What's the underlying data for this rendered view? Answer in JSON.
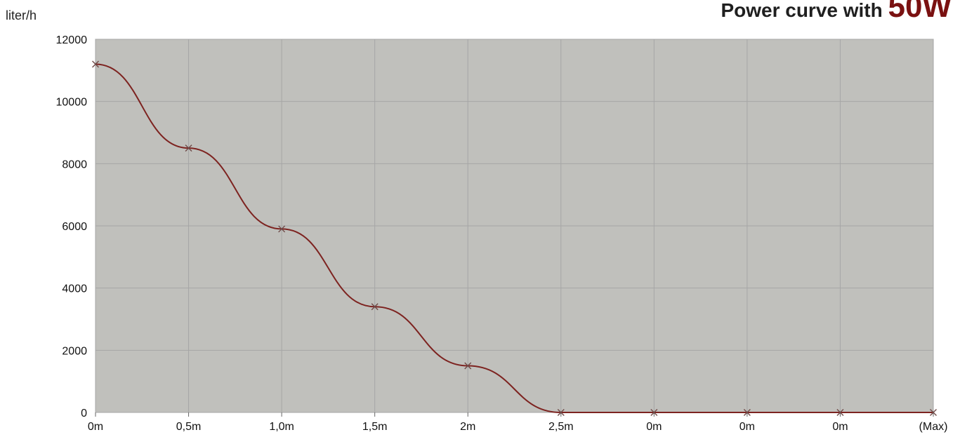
{
  "chart_data": {
    "type": "line",
    "title_prefix": "Power curve with ",
    "title_value": "50W",
    "ylabel": "liter/h",
    "xlabel": "",
    "categories": [
      "0m",
      "0,5m",
      "1,0m",
      "1,5m",
      "2m",
      "2,5m",
      "0m",
      "0m",
      "0m",
      "(Max)"
    ],
    "series": [
      {
        "values": [
          11200,
          8500,
          5900,
          3400,
          1500,
          0,
          0,
          0,
          0,
          0
        ]
      }
    ],
    "ylim": [
      0,
      12000
    ],
    "y_ticks": [
      0,
      2000,
      4000,
      6000,
      8000,
      10000,
      12000
    ],
    "grid": true,
    "legend": "none",
    "colors": {
      "plot_bg": "#c0c0bc",
      "line": "#7d2320",
      "grid": "#a6a6a6",
      "accent": "#7a1111"
    }
  }
}
